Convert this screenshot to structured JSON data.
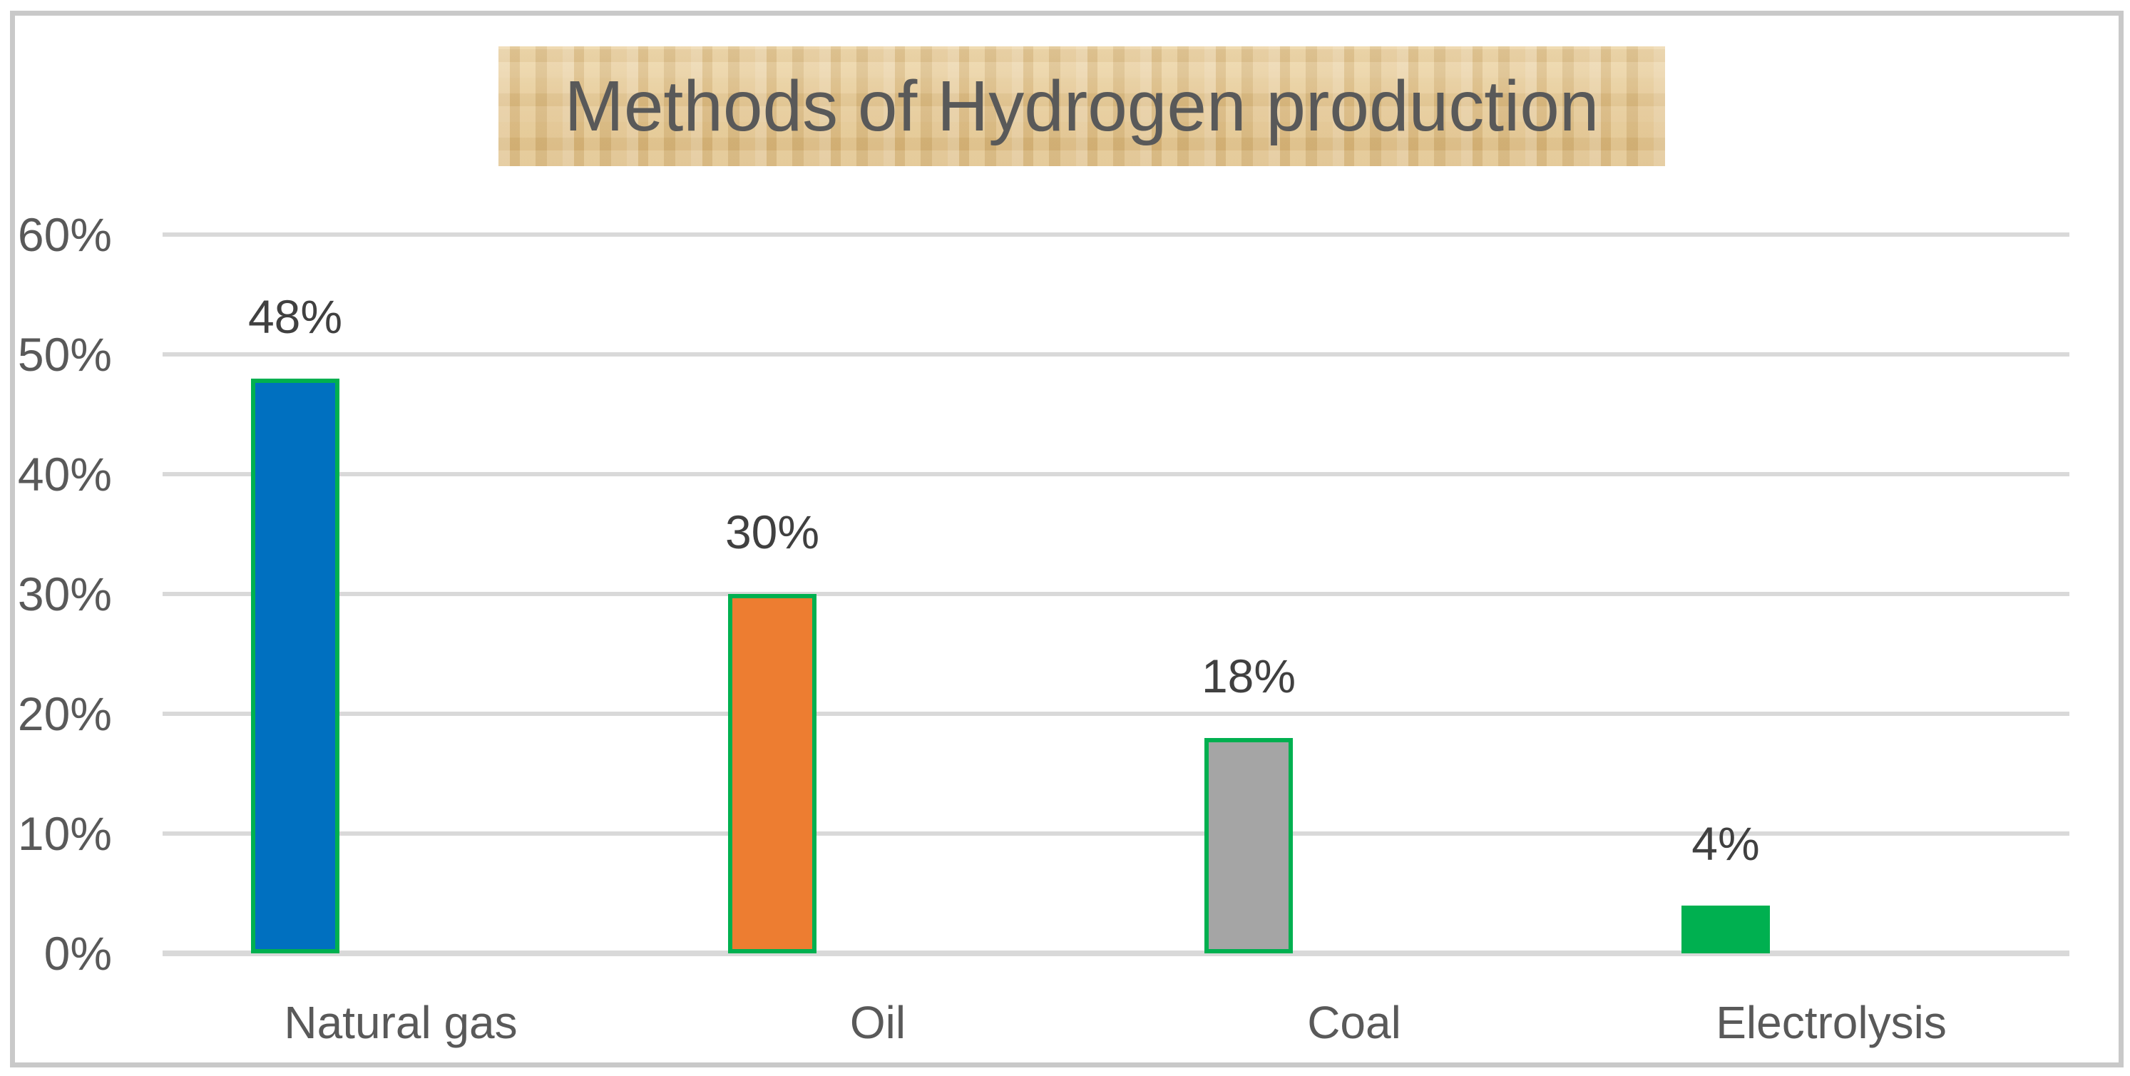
{
  "title": {
    "text": "Methods of Hydrogen production",
    "text_color": "#595959",
    "background_color": "#e3c48f"
  },
  "chart_data": {
    "type": "bar",
    "title": "Methods of Hydrogen production",
    "categories": [
      "Natural gas",
      "Oil",
      "Coal",
      "Electrolysis"
    ],
    "values": [
      48,
      30,
      18,
      4
    ],
    "series": [
      {
        "name": "Methods of Hydrogen production",
        "values": [
          48,
          30,
          18,
          4
        ]
      }
    ],
    "data_labels": [
      "48%",
      "30%",
      "18%",
      "4%"
    ],
    "bars": [
      {
        "category": "Natural gas",
        "value": 48,
        "label": "48%",
        "fill": "#0070c0",
        "border": "#00b050"
      },
      {
        "category": "Oil",
        "value": 30,
        "label": "30%",
        "fill": "#ed7d31",
        "border": "#00b050"
      },
      {
        "category": "Coal",
        "value": 18,
        "label": "18%",
        "fill": "#a5a5a5",
        "border": "#00b050"
      },
      {
        "category": "Electrolysis",
        "value": 4,
        "label": "4%",
        "fill": "#00b050",
        "border": "#00b050"
      }
    ],
    "xlabel": "",
    "ylabel": "",
    "y_axis": {
      "min": 0,
      "max": 60,
      "step": 10,
      "tick_labels": [
        "0%",
        "10%",
        "20%",
        "30%",
        "40%",
        "50%",
        "60%"
      ]
    },
    "grid": true,
    "legend": false,
    "colors": {
      "gridline": "#d9d9d9",
      "axis_line": "#d9d9d9",
      "tick_label": "#595959",
      "category_label": "#595959",
      "data_label": "#404040",
      "frame_border": "#c9c9c9"
    }
  }
}
